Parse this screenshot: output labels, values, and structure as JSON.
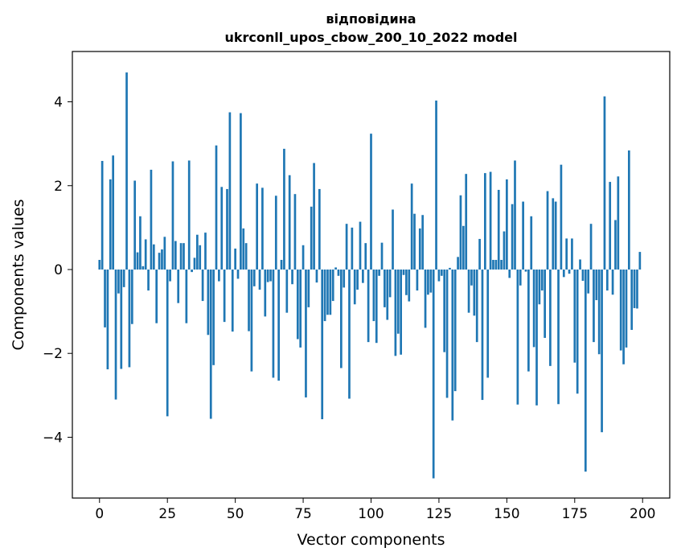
{
  "chart_data": {
    "type": "bar",
    "title_line1": "відповідина",
    "title_line2": "ukrconll_upos_cbow_200_10_2022 model",
    "xlabel": "Vector components",
    "ylabel": "Components values",
    "xlim": [
      -10,
      210
    ],
    "ylim": [
      -5.45,
      5.2
    ],
    "xticks": [
      0,
      25,
      50,
      75,
      100,
      125,
      150,
      175,
      200
    ],
    "xtick_labels": [
      "0",
      "25",
      "50",
      "75",
      "100",
      "125",
      "150",
      "175",
      "200"
    ],
    "yticks": [
      -4,
      -2,
      0,
      2,
      4
    ],
    "ytick_labels": [
      "−4",
      "−2",
      "0",
      "2",
      "4"
    ],
    "grid": false,
    "bar_color": "#1f77b4",
    "x": [
      0,
      1,
      2,
      3,
      4,
      5,
      6,
      7,
      8,
      9,
      10,
      11,
      12,
      13,
      14,
      15,
      16,
      17,
      18,
      19,
      20,
      21,
      22,
      23,
      24,
      25,
      26,
      27,
      28,
      29,
      30,
      31,
      32,
      33,
      34,
      35,
      36,
      37,
      38,
      39,
      40,
      41,
      42,
      43,
      44,
      45,
      46,
      47,
      48,
      49,
      50,
      51,
      52,
      53,
      54,
      55,
      56,
      57,
      58,
      59,
      60,
      61,
      62,
      63,
      64,
      65,
      66,
      67,
      68,
      69,
      70,
      71,
      72,
      73,
      74,
      75,
      76,
      77,
      78,
      79,
      80,
      81,
      82,
      83,
      84,
      85,
      86,
      87,
      88,
      89,
      90,
      91,
      92,
      93,
      94,
      95,
      96,
      97,
      98,
      99,
      100,
      101,
      102,
      103,
      104,
      105,
      106,
      107,
      108,
      109,
      110,
      111,
      112,
      113,
      114,
      115,
      116,
      117,
      118,
      119,
      120,
      121,
      122,
      123,
      124,
      125,
      126,
      127,
      128,
      129,
      130,
      131,
      132,
      133,
      134,
      135,
      136,
      137,
      138,
      139,
      140,
      141,
      142,
      143,
      144,
      145,
      146,
      147,
      148,
      149,
      150,
      151,
      152,
      153,
      154,
      155,
      156,
      157,
      158,
      159,
      160,
      161,
      162,
      163,
      164,
      165,
      166,
      167,
      168,
      169,
      170,
      171,
      172,
      173,
      174,
      175,
      176,
      177,
      178,
      179,
      180,
      181,
      182,
      183,
      184,
      185,
      186,
      187,
      188,
      189,
      190,
      191,
      192,
      193,
      194,
      195,
      196,
      197,
      198,
      199
    ],
    "values": [
      0.23,
      2.59,
      -1.38,
      -2.38,
      2.15,
      2.72,
      -3.1,
      -0.57,
      -2.37,
      -0.42,
      4.7,
      -2.33,
      -1.3,
      2.12,
      0.41,
      1.27,
      0.08,
      0.72,
      -0.5,
      2.38,
      0.6,
      -1.28,
      0.4,
      0.48,
      0.78,
      -3.5,
      -0.28,
      2.58,
      0.68,
      -0.8,
      0.63,
      0.63,
      -1.28,
      2.6,
      -0.06,
      0.28,
      0.83,
      0.58,
      -0.75,
      0.88,
      -1.56,
      -3.56,
      -2.28,
      2.96,
      -0.28,
      1.97,
      -1.25,
      1.92,
      3.75,
      -1.48,
      0.5,
      -0.22,
      3.73,
      0.98,
      0.63,
      -1.47,
      -2.43,
      -0.4,
      2.05,
      -0.48,
      1.95,
      -1.12,
      -0.3,
      -0.28,
      -2.58,
      1.76,
      -2.65,
      0.23,
      2.88,
      -1.03,
      2.25,
      -0.35,
      1.8,
      -1.66,
      -1.86,
      0.58,
      -3.05,
      -0.9,
      1.5,
      2.54,
      -0.31,
      1.92,
      -3.57,
      -1.23,
      -1.08,
      -1.08,
      -0.75,
      0.05,
      -0.15,
      -2.35,
      -0.43,
      1.09,
      -3.08,
      1.0,
      -0.83,
      -0.48,
      1.14,
      -0.32,
      0.63,
      -1.73,
      3.24,
      -1.23,
      -1.75,
      -0.15,
      0.64,
      -0.9,
      -1.2,
      -0.66,
      1.43,
      -2.06,
      -1.53,
      -2.03,
      -0.13,
      -0.61,
      -0.76,
      2.05,
      1.33,
      -0.5,
      0.98,
      1.3,
      -1.39,
      -0.6,
      -0.55,
      -4.98,
      4.03,
      -0.28,
      -0.15,
      -1.97,
      -3.06,
      0.04,
      -3.6,
      -2.9,
      0.3,
      1.77,
      1.04,
      2.28,
      -1.03,
      -0.38,
      -1.1,
      -1.73,
      0.73,
      -3.11,
      2.3,
      -2.58,
      2.33,
      0.23,
      0.23,
      1.9,
      0.23,
      0.91,
      2.15,
      -0.2,
      1.56,
      2.6,
      -3.22,
      -0.38,
      1.62,
      -0.05,
      -2.43,
      1.27,
      -1.85,
      -3.24,
      -0.83,
      -0.5,
      -1.63,
      1.87,
      -2.3,
      1.7,
      1.62,
      -3.21,
      2.5,
      -0.18,
      0.74,
      -0.1,
      0.74,
      -2.22,
      -2.96,
      0.24,
      -0.27,
      -4.82,
      -0.57,
      1.09,
      -1.73,
      -0.73,
      -2.02,
      -3.88,
      4.13,
      -0.5,
      2.09,
      -0.6,
      1.18,
      2.22,
      -1.93,
      -2.26,
      -1.86,
      2.84,
      -1.44,
      -0.92,
      -0.93,
      0.42
    ]
  }
}
